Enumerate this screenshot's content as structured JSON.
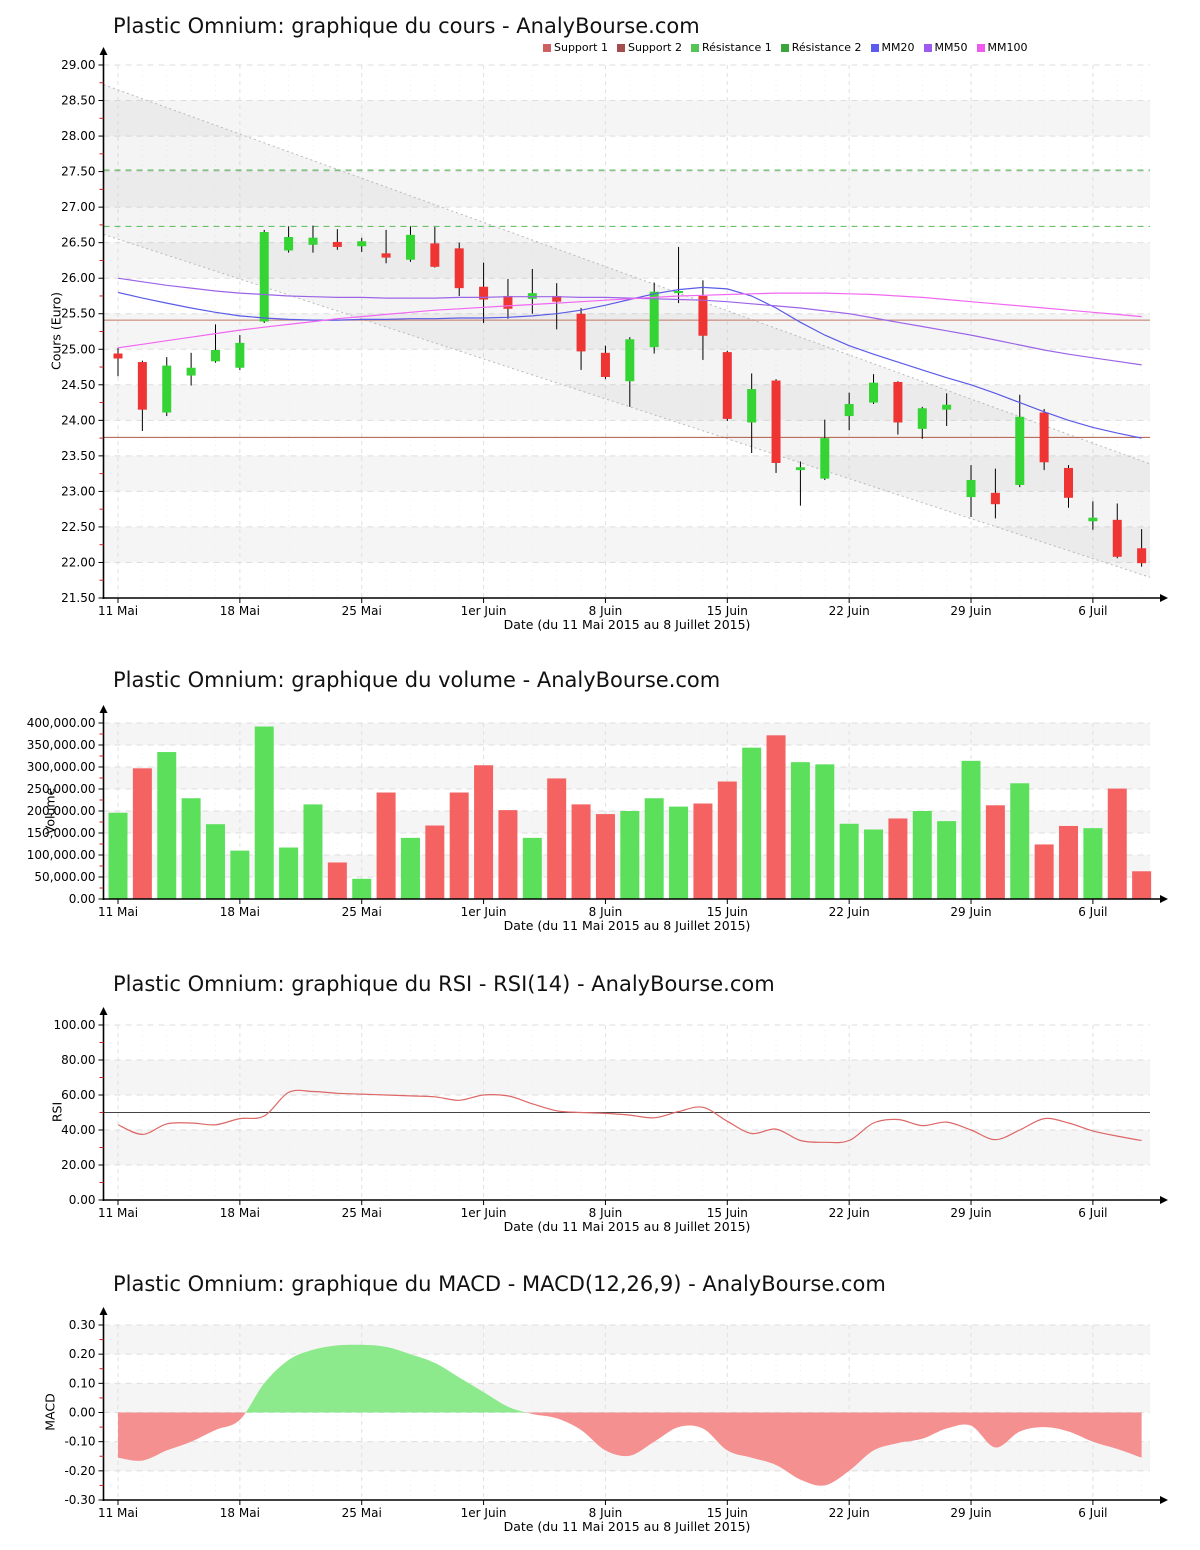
{
  "page": {
    "background": "#ffffff"
  },
  "axis": {
    "week_labels": [
      "11 Mai",
      "18 Mai",
      "25 Mai",
      "1er Juin",
      "8 Juin",
      "15 Juin",
      "22 Juin",
      "29 Juin",
      "6 Juil"
    ],
    "date_label": "Date (du 11 Mai 2015 au 8 Juillet 2015)"
  },
  "legend": [
    {
      "label": "Support 1",
      "color": "#cd6060"
    },
    {
      "label": "Support 2",
      "color": "#a34d4d"
    },
    {
      "label": "Résistance 1",
      "color": "#55c555"
    },
    {
      "label": "Résistance 2",
      "color": "#3aa53a"
    },
    {
      "label": "MM20",
      "color": "#5b5bee"
    },
    {
      "label": "MM50",
      "color": "#9b5bee"
    },
    {
      "label": "MM100",
      "color": "#ee5bee"
    }
  ],
  "chart_data": [
    {
      "type": "candlestick",
      "title": "Plastic Omnium: graphique du cours - AnalyBourse.com",
      "ylabel": "Cours (Euro)",
      "xlabel": "Date (du 11 Mai 2015 au 8 Juillet 2015)",
      "ylim": [
        21.5,
        29.0
      ],
      "ystep": 0.5,
      "yticks": [
        "29.00",
        "28.50",
        "28.00",
        "27.50",
        "27.00",
        "26.50",
        "26.00",
        "25.50",
        "25.00",
        "24.50",
        "24.00",
        "23.50",
        "23.00",
        "22.50",
        "22.00",
        "21.50"
      ],
      "gray_bands": [
        [
          22.0,
          22.5
        ],
        [
          23.0,
          23.5
        ],
        [
          24.0,
          24.5
        ],
        [
          25.0,
          25.5
        ],
        [
          26.0,
          26.5
        ],
        [
          27.0,
          27.5
        ],
        [
          28.0,
          28.5
        ]
      ],
      "dates": [
        "11 Mai",
        "12 Mai",
        "13 Mai",
        "14 Mai",
        "15 Mai",
        "18 Mai",
        "19 Mai",
        "20 Mai",
        "21 Mai",
        "22 Mai",
        "25 Mai",
        "26 Mai",
        "27 Mai",
        "28 Mai",
        "29 Mai",
        "1 Juin",
        "2 Juin",
        "3 Juin",
        "4 Juin",
        "5 Juin",
        "8 Juin",
        "9 Juin",
        "10 Juin",
        "11 Juin",
        "12 Juin",
        "15 Juin",
        "16 Juin",
        "17 Juin",
        "18 Juin",
        "19 Juin",
        "22 Juin",
        "23 Juin",
        "24 Juin",
        "25 Juin",
        "26 Juin",
        "29 Juin",
        "30 Juin",
        "1 Juil",
        "2 Juil",
        "3 Juil",
        "6 Juil",
        "7 Juil",
        "8 Juil"
      ],
      "ohlc": [
        [
          24.94,
          25.02,
          24.62,
          24.87
        ],
        [
          24.82,
          24.84,
          23.85,
          24.15
        ],
        [
          24.11,
          24.89,
          24.06,
          24.77
        ],
        [
          24.63,
          24.95,
          24.49,
          24.74
        ],
        [
          24.83,
          25.35,
          24.81,
          24.99
        ],
        [
          24.74,
          25.2,
          24.71,
          25.09
        ],
        [
          25.39,
          26.68,
          25.37,
          26.65
        ],
        [
          26.39,
          26.73,
          26.36,
          26.58
        ],
        [
          26.47,
          26.74,
          26.36,
          26.57
        ],
        [
          26.51,
          26.69,
          26.4,
          26.44
        ],
        [
          26.45,
          26.57,
          26.37,
          26.52
        ],
        [
          26.35,
          26.68,
          26.21,
          26.29
        ],
        [
          26.26,
          26.73,
          26.23,
          26.61
        ],
        [
          26.49,
          26.72,
          26.15,
          26.16
        ],
        [
          26.42,
          26.5,
          25.75,
          25.86
        ],
        [
          25.88,
          26.22,
          25.37,
          25.7
        ],
        [
          25.75,
          25.99,
          25.43,
          25.57
        ],
        [
          25.71,
          26.13,
          25.5,
          25.79
        ],
        [
          25.75,
          25.93,
          25.28,
          25.67
        ],
        [
          25.5,
          25.58,
          24.71,
          24.97
        ],
        [
          24.95,
          25.05,
          24.58,
          24.61
        ],
        [
          24.55,
          25.17,
          24.19,
          25.14
        ],
        [
          25.03,
          25.94,
          24.94,
          25.81
        ],
        [
          25.79,
          26.44,
          25.65,
          25.82
        ],
        [
          25.75,
          25.97,
          24.85,
          25.19
        ],
        [
          24.96,
          24.98,
          23.99,
          24.02
        ],
        [
          23.97,
          24.66,
          23.54,
          24.44
        ],
        [
          24.56,
          24.58,
          23.26,
          23.4
        ],
        [
          23.3,
          23.42,
          22.8,
          23.34
        ],
        [
          23.18,
          24.01,
          23.16,
          23.75
        ],
        [
          24.06,
          24.39,
          23.86,
          24.23
        ],
        [
          24.25,
          24.65,
          24.23,
          24.53
        ],
        [
          24.54,
          24.55,
          23.8,
          23.97
        ],
        [
          23.88,
          24.19,
          23.74,
          24.17
        ],
        [
          24.15,
          24.38,
          23.92,
          24.22
        ],
        [
          22.92,
          23.37,
          22.64,
          23.16
        ],
        [
          22.98,
          23.32,
          22.62,
          22.82
        ],
        [
          23.09,
          24.36,
          23.06,
          24.05
        ],
        [
          24.11,
          24.16,
          23.3,
          23.41
        ],
        [
          23.33,
          23.37,
          22.77,
          22.91
        ],
        [
          22.58,
          22.86,
          22.46,
          22.63
        ],
        [
          22.6,
          22.83,
          22.06,
          22.08
        ],
        [
          22.2,
          22.47,
          21.94,
          21.99
        ]
      ],
      "colors": {
        "up": "#35d435",
        "down": "#ef3434",
        "wick": "#000000"
      },
      "overlays": {
        "support1": {
          "label": "Support 1",
          "value": 25.41,
          "color": "#c07868",
          "style": "solid"
        },
        "support2": {
          "label": "Support 2",
          "value": 23.76,
          "color": "#b05a4a",
          "style": "solid"
        },
        "resistance1": {
          "label": "Résistance 1",
          "value": 26.73,
          "color": "#55bb55",
          "style": "dashed"
        },
        "resistance2": {
          "label": "Résistance 2",
          "value": 27.52,
          "color": "#3aa53a",
          "style": "dashed"
        },
        "mm20": {
          "label": "MM20",
          "color": "#5b5be8",
          "values": [
            25.8,
            25.72,
            25.65,
            25.58,
            25.52,
            25.47,
            25.44,
            25.42,
            25.41,
            25.41,
            25.42,
            25.42,
            25.43,
            25.43,
            25.44,
            25.44,
            25.45,
            25.47,
            25.5,
            25.55,
            25.62,
            25.7,
            25.78,
            25.84,
            25.87,
            25.85,
            25.75,
            25.58,
            25.38,
            25.2,
            25.05,
            24.93,
            24.82,
            24.71,
            24.6,
            24.5,
            24.38,
            24.25,
            24.12,
            24.0,
            23.9,
            23.82,
            23.75
          ]
        },
        "mm50": {
          "label": "MM50",
          "color": "#9c64e8",
          "values": [
            26.0,
            25.95,
            25.9,
            25.86,
            25.82,
            25.79,
            25.77,
            25.75,
            25.74,
            25.73,
            25.73,
            25.72,
            25.72,
            25.72,
            25.73,
            25.73,
            25.74,
            25.74,
            25.74,
            25.73,
            25.73,
            25.72,
            25.71,
            25.7,
            25.69,
            25.67,
            25.64,
            25.61,
            25.58,
            25.54,
            25.5,
            25.44,
            25.38,
            25.32,
            25.26,
            25.2,
            25.13,
            25.06,
            24.99,
            24.93,
            24.88,
            24.83,
            24.78
          ]
        },
        "mm100": {
          "label": "MM100",
          "color": "#f267f2",
          "values": [
            25.02,
            25.07,
            25.12,
            25.17,
            25.22,
            25.27,
            25.31,
            25.35,
            25.39,
            25.43,
            25.46,
            25.49,
            25.52,
            25.55,
            25.57,
            25.59,
            25.61,
            25.63,
            25.65,
            25.67,
            25.69,
            25.71,
            25.73,
            25.75,
            25.76,
            25.77,
            25.78,
            25.79,
            25.79,
            25.79,
            25.78,
            25.77,
            25.75,
            25.73,
            25.7,
            25.67,
            25.64,
            25.61,
            25.58,
            25.55,
            25.52,
            25.49,
            25.46
          ]
        },
        "channel": {
          "top_start": 28.65,
          "top_end": 23.43,
          "bottom_start": 26.55,
          "bottom_end": 21.83,
          "line_color": "#b9b9b9",
          "fill_color": "rgba(150,150,150,0.10)"
        }
      }
    },
    {
      "type": "bar",
      "title": "Plastic Omnium: graphique du volume - AnalyBourse.com",
      "ylabel": "Volume",
      "xlabel": "Date (du 11 Mai 2015 au 8 Juillet 2015)",
      "ylim": [
        0,
        400000
      ],
      "ystep": 50000,
      "yticks": [
        "400,000.00",
        "350,000.00",
        "300,000.00",
        "250,000.00",
        "200,000.00",
        "150,000.00",
        "100,000.00",
        "50,000.00",
        "0.00"
      ],
      "gray_bands": [
        [
          50000,
          100000
        ],
        [
          150000,
          200000
        ],
        [
          250000,
          300000
        ],
        [
          350000,
          400000
        ]
      ],
      "values": [
        196000,
        297000,
        334000,
        229000,
        170000,
        110000,
        392000,
        117000,
        215000,
        83000,
        46000,
        242000,
        139000,
        167000,
        242000,
        304000,
        202000,
        139000,
        274000,
        215000,
        193000,
        200000,
        229000,
        210000,
        217000,
        267000,
        344000,
        372000,
        311000,
        306000,
        171000,
        158000,
        183000,
        200000,
        177000,
        314000,
        213000,
        263000,
        124000,
        166000,
        161000,
        251000,
        63000
      ],
      "bar_dirs": [
        "g",
        "r",
        "g",
        "g",
        "g",
        "g",
        "g",
        "g",
        "g",
        "r",
        "g",
        "r",
        "g",
        "r",
        "r",
        "r",
        "r",
        "g",
        "r",
        "r",
        "r",
        "g",
        "g",
        "g",
        "r",
        "r",
        "g",
        "r",
        "g",
        "g",
        "g",
        "g",
        "r",
        "g",
        "g",
        "g",
        "r",
        "g",
        "r",
        "r",
        "g",
        "r",
        "r"
      ],
      "colors": {
        "up": "#5ce05c",
        "down": "#f46262"
      }
    },
    {
      "type": "line",
      "title": "Plastic Omnium: graphique du RSI - RSI(14) - AnalyBourse.com",
      "ylabel": "RSI",
      "xlabel": "Date (du 11 Mai 2015 au 8 Juillet 2015)",
      "ylim": [
        0,
        100
      ],
      "ystep": 20,
      "yticks": [
        "100.00",
        "80.00",
        "60.00",
        "40.00",
        "20.00",
        "0.00"
      ],
      "gray_bands": [
        [
          20,
          40
        ],
        [
          60,
          80
        ]
      ],
      "midline": 50,
      "midline_color": "#444444",
      "line_color": "#dd6666",
      "values": [
        43,
        37.5,
        43.5,
        44,
        43,
        46.5,
        48,
        61.5,
        62,
        61,
        60.5,
        60,
        59.5,
        59,
        57,
        60,
        59.5,
        55,
        51,
        50,
        49.5,
        48.5,
        47,
        50.5,
        53,
        45,
        38,
        40.5,
        34,
        33,
        34,
        44,
        46,
        42.5,
        44.5,
        40,
        34.5,
        40,
        46.5,
        44,
        39.5,
        36.5,
        34
      ]
    },
    {
      "type": "area",
      "title": "Plastic Omnium: graphique du MACD - MACD(12,26,9) - AnalyBourse.com",
      "ylabel": "MACD",
      "xlabel": "Date (du 11 Mai 2015 au 8 Juillet 2015)",
      "ylim": [
        -0.3,
        0.3
      ],
      "ystep": 0.1,
      "yticks": [
        "0.30",
        "0.20",
        "0.10",
        "0.00",
        "-0.10",
        "-0.20",
        "-0.30"
      ],
      "gray_bands": [
        [
          -0.2,
          -0.1
        ],
        [
          0.0,
          0.1
        ],
        [
          0.2,
          0.3
        ]
      ],
      "colors": {
        "pos": "#8ce98c",
        "neg": "#f59090"
      },
      "values": [
        -0.155,
        -0.165,
        -0.13,
        -0.1,
        -0.06,
        -0.025,
        0.1,
        0.18,
        0.215,
        0.23,
        0.232,
        0.225,
        0.2,
        0.17,
        0.12,
        0.07,
        0.02,
        -0.005,
        -0.02,
        -0.06,
        -0.13,
        -0.148,
        -0.1,
        -0.05,
        -0.055,
        -0.13,
        -0.155,
        -0.18,
        -0.23,
        -0.25,
        -0.2,
        -0.13,
        -0.105,
        -0.09,
        -0.055,
        -0.045,
        -0.12,
        -0.065,
        -0.05,
        -0.065,
        -0.1,
        -0.125,
        -0.155
      ]
    }
  ]
}
